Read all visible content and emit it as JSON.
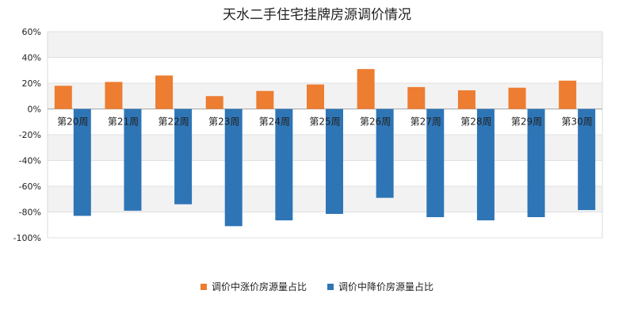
{
  "chart_data": {
    "type": "bar",
    "title": "天水二手住宅挂牌房源调价情况",
    "categories": [
      "第20周",
      "第21周",
      "第22周",
      "第23周",
      "第24周",
      "第25周",
      "第26周",
      "第27周",
      "第28周",
      "第29周",
      "第30周"
    ],
    "series": [
      {
        "name": "调价中涨价房源量占比",
        "color": "#ED7D31",
        "values": [
          18,
          21,
          26,
          10,
          14,
          19,
          31,
          17,
          14.5,
          16.5,
          22
        ]
      },
      {
        "name": "调价中降价房源量占比",
        "color": "#2E75B6",
        "values": [
          -83,
          -79,
          -74,
          -91,
          -86.5,
          -81.5,
          -69,
          -84,
          -86.5,
          -84,
          -78.5
        ]
      }
    ],
    "y_ticks": [
      "60%",
      "40%",
      "20%",
      "0%",
      "-20%",
      "-40%",
      "-60%",
      "-80%",
      "-100%"
    ],
    "ylim": [
      -100,
      60
    ],
    "y_unit": "%",
    "grid": true,
    "legend_position": "bottom"
  }
}
